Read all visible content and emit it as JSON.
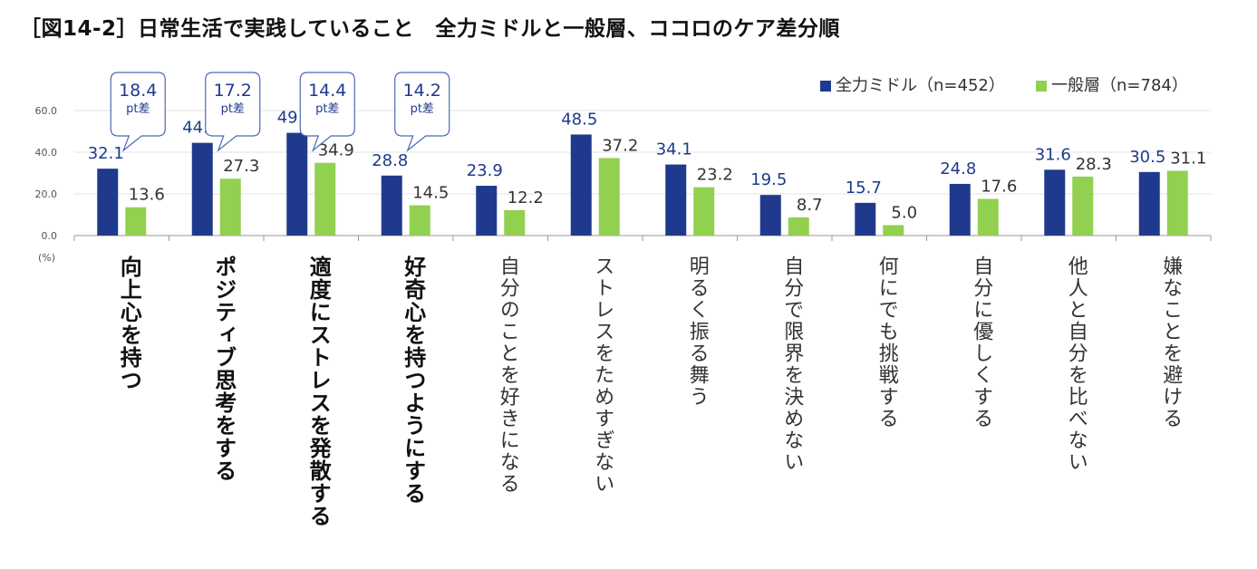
{
  "title": "［図14-2］日常生活で実践していること　全力ミドルと一般層、ココロのケア差分順",
  "chart_data": {
    "type": "bar",
    "title": "［図14-2］日常生活で実践していること　全力ミドルと一般層、ココロのケア差分順",
    "ylabel": "(%)",
    "ylim": [
      0,
      60
    ],
    "yticks": [
      "0.0",
      "20.0",
      "40.0",
      "60.0"
    ],
    "categories": [
      "向上心を持つ",
      "ポジティブ思考をする",
      "適度にストレスを発散する",
      "好奇心を持つようにする",
      "自分のことを好きになる",
      "ストレスをためすぎない",
      "明るく振る舞う",
      "自分で限界を決めない",
      "何にでも挑戦する",
      "自分に優しくする",
      "他人と自分を比べない",
      "嫌なことを避ける"
    ],
    "highlighted": [
      true,
      true,
      true,
      true,
      false,
      false,
      false,
      false,
      false,
      false,
      false,
      false
    ],
    "series": [
      {
        "name": "全力ミドル（n=452）",
        "color": "#1f3a8c",
        "values": [
          32.1,
          44.5,
          49.3,
          28.8,
          23.9,
          48.5,
          34.1,
          19.5,
          15.7,
          24.8,
          31.6,
          30.5
        ]
      },
      {
        "name": "一般層（n=784）",
        "color": "#92d050",
        "values": [
          13.6,
          27.3,
          34.9,
          14.5,
          12.2,
          37.2,
          23.2,
          8.7,
          5.0,
          17.6,
          28.3,
          31.1
        ]
      }
    ],
    "callouts": [
      {
        "value": "18.4",
        "unit": "pt差",
        "category": 0
      },
      {
        "value": "17.2",
        "unit": "pt差",
        "category": 1
      },
      {
        "value": "14.4",
        "unit": "pt差",
        "category": 2
      },
      {
        "value": "14.2",
        "unit": "pt差",
        "category": 3
      }
    ]
  }
}
